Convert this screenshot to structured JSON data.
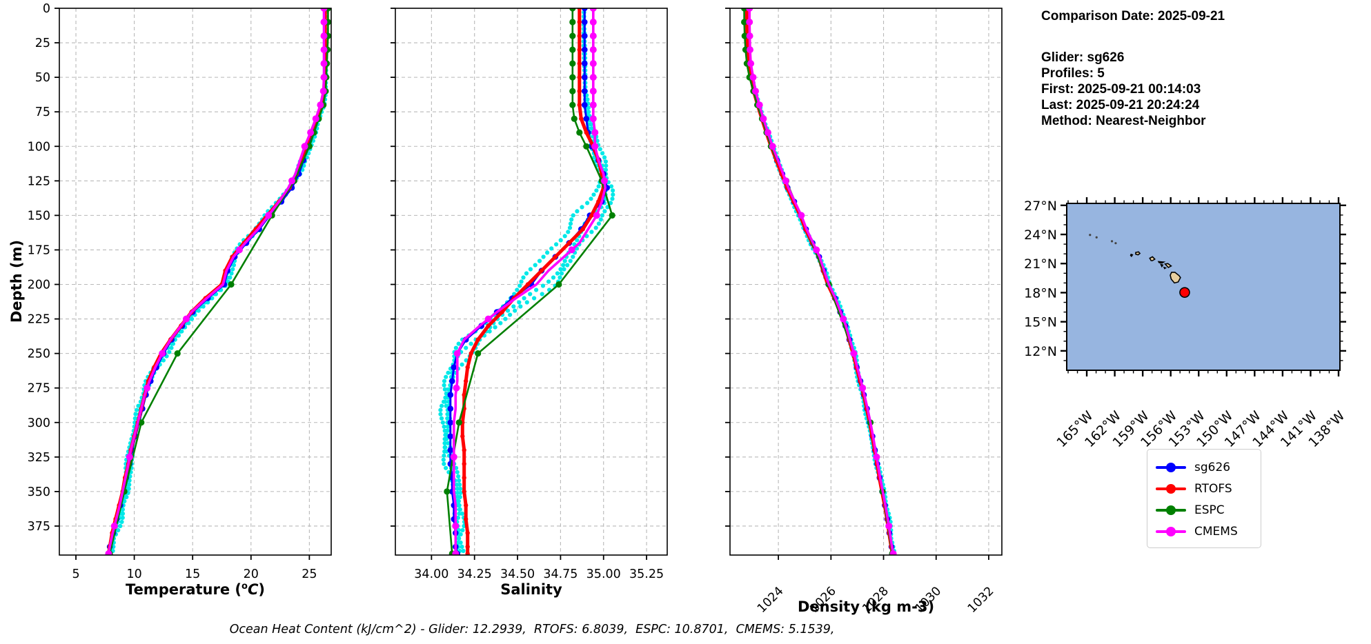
{
  "info": {
    "date_line": "Comparison Date: 2025-09-21",
    "lines": [
      "Glider: sg626",
      "Profiles: 5",
      "First: 2025-09-21 00:14:03",
      "Last: 2025-09-21 20:24:24",
      "Method: Nearest-Neighbor"
    ]
  },
  "axes": {
    "depth_label": "Depth (m)",
    "temp_prefix": "Temperature (",
    "temp_sup": "o",
    "temp_var": "C",
    "temp_suffix": ")",
    "sal_label": "Salinity",
    "dens_label": "Density (kg m-3)"
  },
  "footer": {
    "ohc_caption": "Ocean Heat Content (kJ/cm^2) - Glider: 12.2939,  RTOFS: 6.8039,  ESPC: 10.8701,  CMEMS: 5.1539,"
  },
  "legend": {
    "items": [
      {
        "label": "sg626",
        "color": "#0000FF"
      },
      {
        "label": "RTOFS",
        "color": "#FF0000"
      },
      {
        "label": "ESPC",
        "color": "#008000"
      },
      {
        "label": "CMEMS",
        "color": "#FF00FF"
      }
    ]
  },
  "colors": {
    "raw_glider": "#00E8E8",
    "grid": "#b8b8b8",
    "map_ocean": "#97B5E0",
    "map_land": "#E7CFA0",
    "glider_marker": "#FF0000"
  },
  "chart_data": {
    "type": "line",
    "orientation": "depth-profiles",
    "depth_axis": {
      "label": "Depth (m)",
      "ticks": [
        0,
        25,
        50,
        75,
        100,
        125,
        150,
        175,
        200,
        225,
        250,
        275,
        300,
        325,
        350,
        375
      ],
      "range": [
        0,
        396
      ]
    },
    "panels": [
      {
        "key": "temperature",
        "xlabel": "Temperature (°C)",
        "xlim": [
          3.58,
          26.87
        ],
        "xticks": [
          5,
          10,
          15,
          20,
          25
        ],
        "tick_decimals": 0,
        "rotate_ticks": false,
        "raw_noise": {
          "amp": 0.5
        }
      },
      {
        "key": "salinity",
        "xlabel": "Salinity",
        "xlim": [
          33.79,
          35.37
        ],
        "xticks": [
          34.0,
          34.25,
          34.5,
          34.75,
          35.0,
          35.25
        ],
        "tick_decimals": 2,
        "rotate_ticks": false,
        "raw_noise": {
          "amp": 0.06,
          "bulge": {
            "c": 185,
            "w": 55,
            "v": 0.13
          }
        }
      },
      {
        "key": "density",
        "xlabel": "Density (kg m-3)",
        "xlim": [
          1022.16,
          1032.5
        ],
        "xticks": [
          1024,
          1026,
          1028,
          1030,
          1032
        ],
        "tick_decimals": 0,
        "rotate_ticks": true,
        "raw_noise": {
          "amp": 0.11
        }
      }
    ],
    "raw_series_name": "glider raw profiles (5)",
    "series": [
      {
        "name": "sg626",
        "color": "#0000FF",
        "line_width": 3,
        "marker_radius": 4.3,
        "marker_depths": null,
        "depths": [
          0,
          10,
          20,
          30,
          40,
          50,
          60,
          70,
          80,
          90,
          100,
          110,
          120,
          130,
          140,
          150,
          160,
          170,
          180,
          190,
          200,
          210,
          220,
          230,
          240,
          250,
          260,
          270,
          280,
          290,
          300,
          310,
          320,
          330,
          340,
          350,
          360,
          370,
          380,
          390,
          395
        ],
        "temperature": [
          26.4,
          26.4,
          26.4,
          26.4,
          26.4,
          26.4,
          26.35,
          26.1,
          25.7,
          25.3,
          24.9,
          24.5,
          24.1,
          23.5,
          22.6,
          21.6,
          20.7,
          19.6,
          18.6,
          18.0,
          17.7,
          16.3,
          15.0,
          14.1,
          13.2,
          12.5,
          11.9,
          11.4,
          11.0,
          10.7,
          10.4,
          10.1,
          9.8,
          9.6,
          9.3,
          9.1,
          8.8,
          8.5,
          8.2,
          7.9,
          7.8
        ],
        "salinity": [
          34.89,
          34.89,
          34.89,
          34.89,
          34.89,
          34.89,
          34.89,
          34.89,
          34.9,
          34.91,
          34.93,
          34.97,
          35.0,
          35.02,
          34.99,
          34.92,
          34.87,
          34.8,
          34.72,
          34.64,
          34.58,
          34.47,
          34.38,
          34.29,
          34.2,
          34.15,
          34.13,
          34.12,
          34.11,
          34.11,
          34.11,
          34.11,
          34.11,
          34.11,
          34.12,
          34.12,
          34.13,
          34.13,
          34.14,
          34.14,
          34.15
        ],
        "density": [
          1022.85,
          1022.85,
          1022.86,
          1022.87,
          1022.9,
          1023.0,
          1023.1,
          1023.25,
          1023.4,
          1023.57,
          1023.75,
          1023.95,
          1024.15,
          1024.35,
          1024.6,
          1024.85,
          1025.05,
          1025.3,
          1025.55,
          1025.72,
          1025.9,
          1026.15,
          1026.35,
          1026.55,
          1026.7,
          1026.85,
          1026.98,
          1027.12,
          1027.25,
          1027.37,
          1027.48,
          1027.58,
          1027.67,
          1027.76,
          1027.85,
          1027.95,
          1028.05,
          1028.14,
          1028.22,
          1028.3,
          1028.35
        ]
      },
      {
        "name": "RTOFS",
        "color": "#FF0000",
        "line_width": 5,
        "marker_radius": 3.2,
        "marker_depths": null,
        "depths": [
          0,
          10,
          20,
          30,
          40,
          50,
          60,
          70,
          80,
          90,
          100,
          110,
          120,
          130,
          140,
          150,
          160,
          170,
          180,
          190,
          200,
          210,
          220,
          230,
          240,
          250,
          260,
          270,
          280,
          290,
          300,
          310,
          320,
          330,
          340,
          350,
          360,
          370,
          380,
          390,
          395
        ],
        "temperature": [
          26.35,
          26.35,
          26.35,
          26.35,
          26.35,
          26.3,
          26.25,
          26.0,
          25.6,
          25.15,
          24.7,
          24.3,
          23.9,
          23.3,
          22.4,
          21.4,
          20.4,
          19.4,
          18.4,
          17.8,
          17.5,
          16.1,
          14.9,
          14.0,
          13.1,
          12.3,
          11.7,
          11.2,
          10.9,
          10.6,
          10.3,
          10.0,
          9.7,
          9.5,
          9.2,
          9.0,
          8.7,
          8.4,
          8.1,
          7.9,
          7.8
        ],
        "salinity": [
          34.86,
          34.86,
          34.86,
          34.86,
          34.86,
          34.86,
          34.86,
          34.86,
          34.87,
          34.9,
          34.94,
          34.97,
          34.99,
          35.0,
          34.97,
          34.93,
          34.88,
          34.8,
          34.72,
          34.64,
          34.56,
          34.48,
          34.41,
          34.33,
          34.27,
          34.23,
          34.21,
          34.2,
          34.19,
          34.19,
          34.18,
          34.18,
          34.19,
          34.19,
          34.19,
          34.19,
          34.2,
          34.2,
          34.21,
          34.21,
          34.21
        ],
        "density": [
          1022.8,
          1022.8,
          1022.81,
          1022.82,
          1022.85,
          1022.95,
          1023.06,
          1023.21,
          1023.37,
          1023.54,
          1023.72,
          1023.92,
          1024.12,
          1024.33,
          1024.58,
          1024.83,
          1025.03,
          1025.28,
          1025.53,
          1025.7,
          1025.88,
          1026.13,
          1026.34,
          1026.54,
          1026.69,
          1026.84,
          1026.97,
          1027.11,
          1027.24,
          1027.36,
          1027.47,
          1027.57,
          1027.66,
          1027.75,
          1027.84,
          1027.94,
          1028.04,
          1028.13,
          1028.21,
          1028.29,
          1028.34
        ]
      },
      {
        "name": "ESPC",
        "color": "#008000",
        "line_width": 2.6,
        "marker_radius": 4.6,
        "marker_depths": null,
        "depths": [
          0,
          10,
          20,
          30,
          40,
          50,
          60,
          70,
          80,
          90,
          100,
          125,
          150,
          200,
          250,
          300,
          350,
          395
        ],
        "temperature": [
          26.6,
          26.6,
          26.6,
          26.55,
          26.5,
          26.45,
          26.4,
          26.2,
          25.8,
          25.4,
          25.0,
          23.7,
          21.8,
          18.3,
          13.7,
          10.6,
          9.15,
          7.9
        ],
        "salinity": [
          34.82,
          34.82,
          34.82,
          34.82,
          34.82,
          34.82,
          34.82,
          34.82,
          34.83,
          34.86,
          34.9,
          34.99,
          35.05,
          34.74,
          34.27,
          34.16,
          34.09,
          34.12
        ],
        "density": [
          1022.7,
          1022.7,
          1022.72,
          1022.75,
          1022.8,
          1022.9,
          1023.05,
          1023.2,
          1023.38,
          1023.55,
          1023.72,
          1024.3,
          1024.85,
          1025.92,
          1026.87,
          1027.5,
          1027.96,
          1028.33
        ]
      },
      {
        "name": "CMEMS",
        "color": "#FF00FF",
        "line_width": 3.6,
        "marker_radius": 5,
        "marker_depths": [
          0,
          10,
          20,
          30,
          40,
          50,
          60,
          70,
          80,
          90,
          100,
          125,
          150,
          175,
          225,
          250,
          275,
          325,
          375,
          395
        ],
        "depths": [
          0,
          10,
          20,
          30,
          40,
          50,
          60,
          70,
          80,
          90,
          100,
          110,
          120,
          130,
          140,
          150,
          160,
          170,
          180,
          190,
          200,
          210,
          220,
          230,
          240,
          250,
          260,
          270,
          280,
          290,
          300,
          310,
          320,
          330,
          340,
          350,
          360,
          370,
          380,
          390,
          395
        ],
        "temperature": [
          26.25,
          26.25,
          26.25,
          26.25,
          26.25,
          26.25,
          26.2,
          25.95,
          25.55,
          25.1,
          24.6,
          24.2,
          23.8,
          23.2,
          22.4,
          21.5,
          20.6,
          19.5,
          18.5,
          17.9,
          17.6,
          16.2,
          14.9,
          14.0,
          13.1,
          12.4,
          11.8,
          11.3,
          10.9,
          10.6,
          10.3,
          10.0,
          9.7,
          9.5,
          9.25,
          9.0,
          8.75,
          8.45,
          8.15,
          7.9,
          7.8
        ],
        "salinity": [
          34.94,
          34.94,
          34.94,
          34.94,
          34.94,
          34.94,
          34.94,
          34.94,
          34.94,
          34.95,
          34.95,
          34.97,
          35.0,
          35.01,
          34.99,
          34.96,
          34.91,
          34.86,
          34.77,
          34.68,
          34.61,
          34.49,
          34.38,
          34.28,
          34.19,
          34.15,
          34.15,
          34.15,
          34.14,
          34.14,
          34.13,
          34.13,
          34.13,
          34.13,
          34.13,
          34.13,
          34.14,
          34.14,
          34.14,
          34.14,
          34.14
        ],
        "density": [
          1022.9,
          1022.9,
          1022.91,
          1022.92,
          1022.95,
          1023.04,
          1023.13,
          1023.28,
          1023.43,
          1023.6,
          1023.78,
          1023.98,
          1024.18,
          1024.38,
          1024.62,
          1024.87,
          1025.07,
          1025.32,
          1025.57,
          1025.74,
          1025.92,
          1026.17,
          1026.37,
          1026.57,
          1026.72,
          1026.87,
          1027.0,
          1027.14,
          1027.27,
          1027.39,
          1027.5,
          1027.6,
          1027.69,
          1027.78,
          1027.87,
          1027.97,
          1028.07,
          1028.16,
          1028.24,
          1028.32,
          1028.37
        ]
      }
    ],
    "map": {
      "lon_range": [
        -167.15,
        -137.85
      ],
      "lat_range": [
        10.0,
        27.2
      ],
      "lon_ticks": [
        -165,
        -162,
        -159,
        -156,
        -153,
        -150,
        -147,
        -144,
        -141,
        -138
      ],
      "lon_tick_labels": [
        "165°W",
        "162°W",
        "159°W",
        "156°W",
        "153°W",
        "150°W",
        "147°W",
        "144°W",
        "141°W",
        "138°W"
      ],
      "lat_ticks": [
        27,
        24,
        21,
        18,
        15,
        12
      ],
      "lat_tick_labels": [
        "27°N",
        "24°N",
        "21°N",
        "18°N",
        "15°N",
        "12°N"
      ],
      "glider_position": {
        "lon": -154.5,
        "lat": 18.02
      },
      "islands": [
        [
          [
            -159.75,
            22.15
          ],
          [
            -159.45,
            22.2
          ],
          [
            -159.3,
            22.05
          ],
          [
            -159.5,
            21.9
          ],
          [
            -159.75,
            21.97
          ]
        ],
        [
          [
            -160.25,
            21.95
          ],
          [
            -160.1,
            21.9
          ],
          [
            -160.2,
            21.75
          ],
          [
            -160.3,
            21.85
          ]
        ],
        [
          [
            -158.25,
            21.55
          ],
          [
            -157.95,
            21.7
          ],
          [
            -157.7,
            21.45
          ],
          [
            -157.95,
            21.3
          ],
          [
            -158.1,
            21.3
          ]
        ],
        [
          [
            -157.3,
            21.2
          ],
          [
            -156.75,
            21.15
          ],
          [
            -156.95,
            21.05
          ],
          [
            -157.25,
            21.1
          ]
        ],
        [
          [
            -157.05,
            20.9
          ],
          [
            -156.85,
            20.85
          ],
          [
            -156.95,
            20.7
          ]
        ],
        [
          [
            -156.6,
            20.95
          ],
          [
            -156.3,
            21.0
          ],
          [
            -155.95,
            20.75
          ],
          [
            -156.25,
            20.6
          ],
          [
            -156.45,
            20.8
          ]
        ],
        [
          [
            -156.7,
            20.6
          ],
          [
            -156.55,
            20.55
          ],
          [
            -156.65,
            20.48
          ]
        ],
        [
          [
            -155.9,
            20.1
          ],
          [
            -155.55,
            20.1
          ],
          [
            -155.1,
            19.75
          ],
          [
            -154.95,
            19.55
          ],
          [
            -155.2,
            19.1
          ],
          [
            -155.6,
            19.0
          ],
          [
            -155.95,
            19.4
          ],
          [
            -156.05,
            19.8
          ]
        ]
      ],
      "islets": [
        [
          -164.65,
          23.95
        ],
        [
          -163.95,
          23.7
        ],
        [
          -162.3,
          23.3
        ],
        [
          -161.9,
          23.1
        ]
      ]
    }
  }
}
